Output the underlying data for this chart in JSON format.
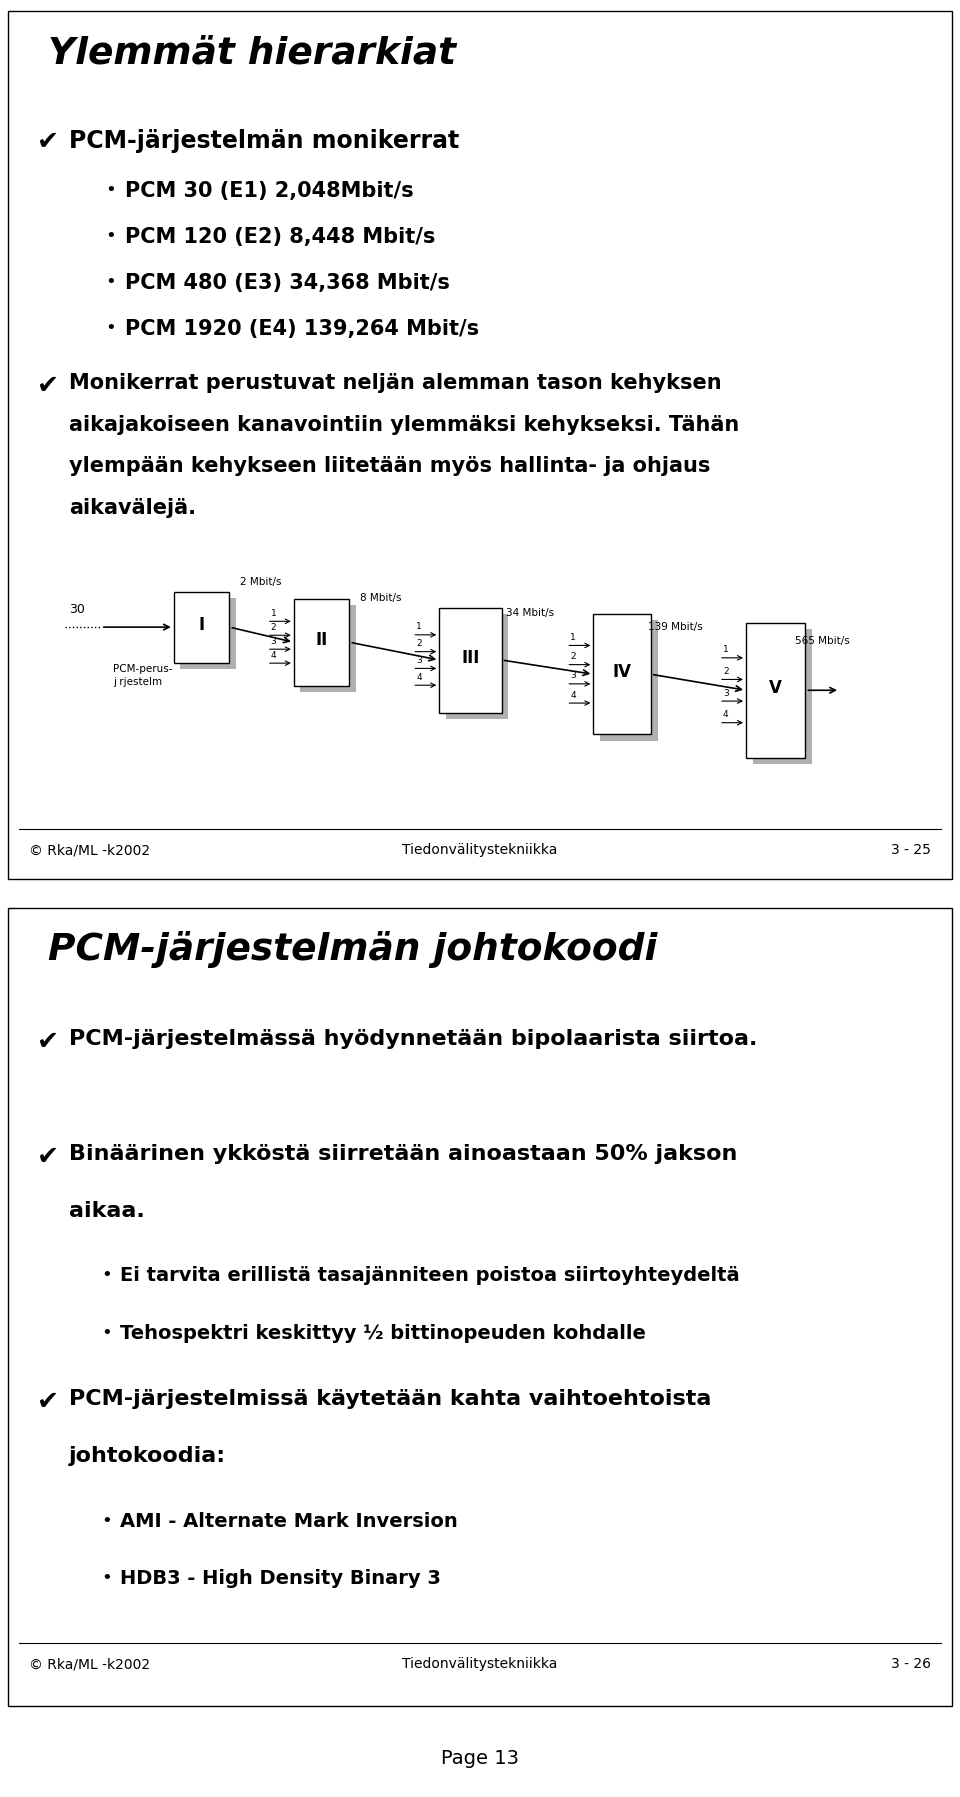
{
  "bg_color": "#ffffff",
  "slide1": {
    "title": "Ylemmät hierarkiat",
    "sections": [
      {
        "type": "checkmark_bold",
        "text": "PCM-järjestelmän monikerrat",
        "sub": [
          {
            "text": "PCM 30 (E1) 2,048Mbit/s"
          },
          {
            "text": "PCM 120 (E2) 8,448 Mbit/s"
          },
          {
            "text": "PCM 480 (E3) 34,368 Mbit/s"
          },
          {
            "text": "PCM 1920 (E4) 139,264 Mbit/s"
          }
        ]
      },
      {
        "type": "checkmark_bold",
        "text": "Monikerrat perustuvat neljän alemman tason kehyksen\naikajakoiseen kanavointiin ylemmäksi kehykseksi. Tähän\nylempään kehykseen liitetään myös hallinta- ja ohjaus\naikavälejä.",
        "sub": []
      }
    ],
    "footer_left": "© Rka/ML -k2002",
    "footer_center": "Tiedonvälitystekniikka",
    "footer_right": "3 - 25"
  },
  "slide2": {
    "title": "PCM-järjestelmän johtokoodi",
    "sections": [
      {
        "type": "checkmark_bold",
        "text": "PCM-järjestelmässä hyödynnetään bipolaarista siirtoa.",
        "sub": []
      },
      {
        "type": "checkmark_bold",
        "text": "Binäärinen ykköstä siirretään ainoastaan 50% jakson\naikaa.",
        "sub": [
          {
            "text": "Ei tarvita erillistä tasajänniteen poistoa siirtoyhteydeltä"
          },
          {
            "text": "Tehospektri keskittyy ½ bittinopeuden kohdalle"
          }
        ]
      },
      {
        "type": "checkmark_bold",
        "text": "PCM-järjestelmissä käytetään kahta vaihtoehtoista\njohtokoodia:",
        "sub": [
          {
            "text": "AMI - Alternate Mark Inversion"
          },
          {
            "text": "HDB3 - High Density Binary 3"
          }
        ]
      }
    ],
    "footer_left": "© Rka/ML -k2002",
    "footer_center": "Tiedonvälitystekniikka",
    "footer_right": "3 - 26"
  },
  "page_label": "Page 13"
}
